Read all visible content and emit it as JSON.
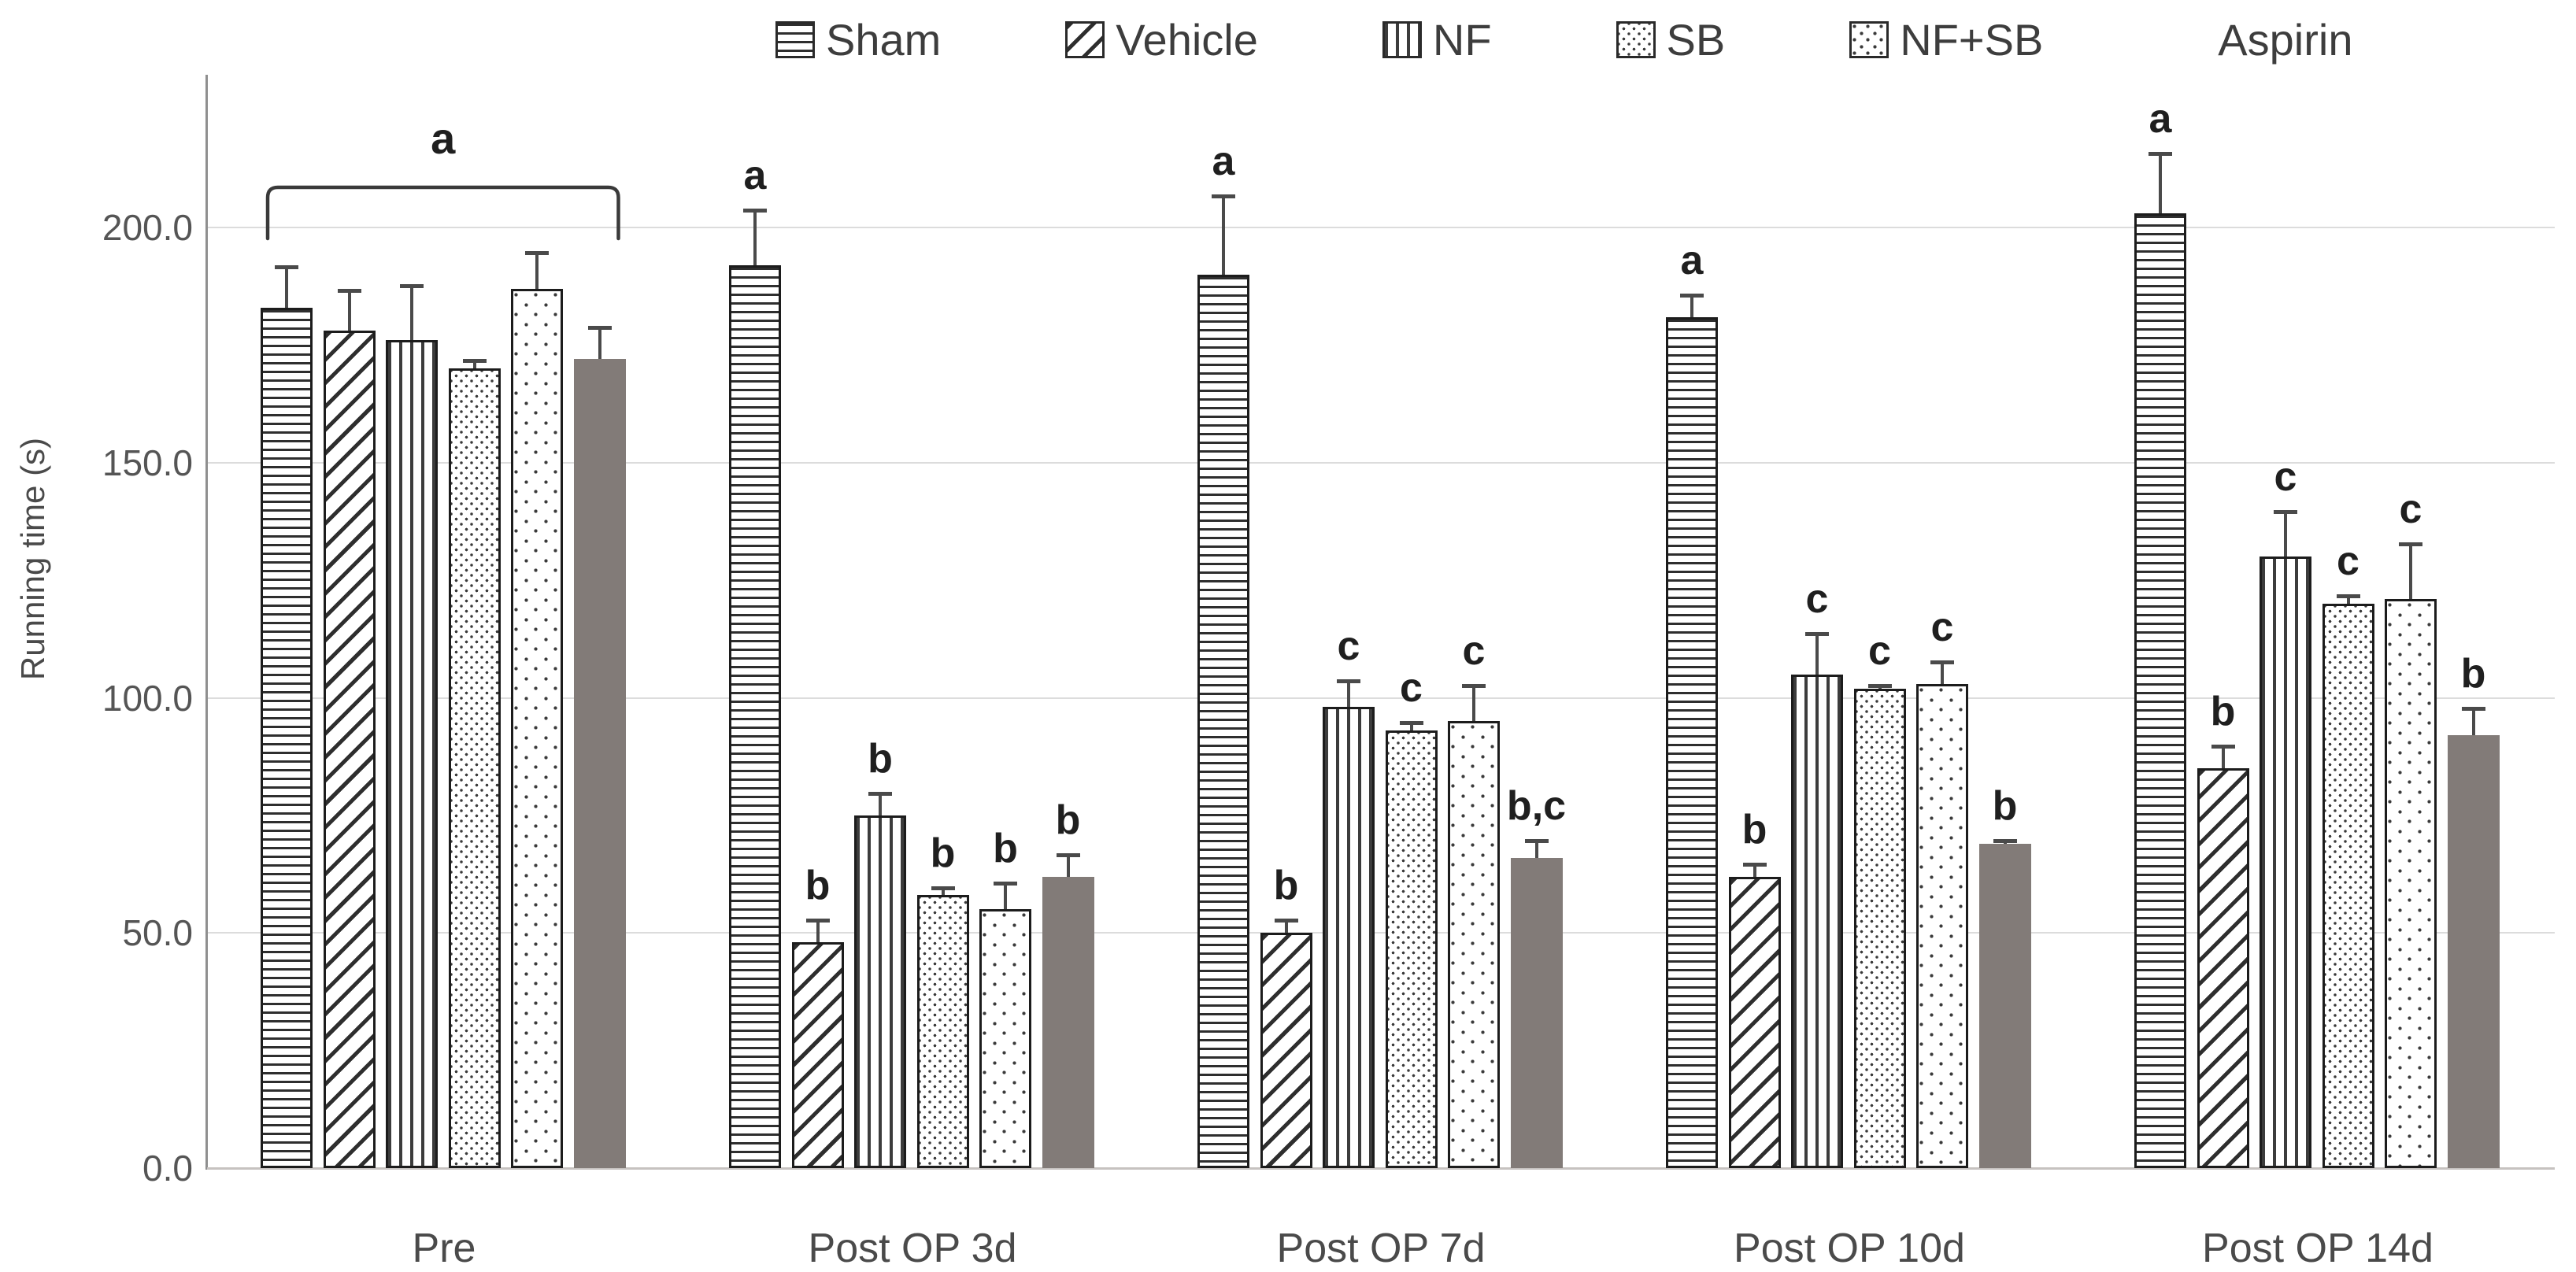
{
  "chart_data": {
    "type": "bar",
    "title": "",
    "xlabel": "",
    "ylabel": "Running time (s)",
    "ylim": [
      0,
      232
    ],
    "grid": true,
    "legend_position": "top",
    "yticks": [
      {
        "value": 0,
        "label": "0.0"
      },
      {
        "value": 50,
        "label": "50.0"
      },
      {
        "value": 100,
        "label": "100.0"
      },
      {
        "value": 150,
        "label": "150.0"
      },
      {
        "value": 200,
        "label": "200.0"
      }
    ],
    "categories": [
      "Pre",
      "Post OP 3d",
      "Post OP 7d",
      "Post OP 10d",
      "Post OP 14d"
    ],
    "series": [
      {
        "name": "Sham",
        "pattern": "horizontal-stripes",
        "values": [
          183,
          192,
          190,
          181,
          203
        ],
        "errors": [
          9,
          12,
          17,
          5,
          13
        ],
        "sig_letters": [
          "",
          "a",
          "a",
          "a",
          "a"
        ]
      },
      {
        "name": "Vehicle",
        "pattern": "diagonal-stripes",
        "values": [
          178,
          48,
          50,
          62,
          85
        ],
        "errors": [
          9,
          5,
          3,
          3,
          5
        ],
        "sig_letters": [
          "",
          "b",
          "b",
          "b",
          "b"
        ]
      },
      {
        "name": "NF",
        "pattern": "vertical-stripes",
        "values": [
          176,
          75,
          98,
          105,
          130
        ],
        "errors": [
          12,
          5,
          6,
          9,
          10
        ],
        "sig_letters": [
          "",
          "b",
          "c",
          "c",
          "c"
        ]
      },
      {
        "name": "SB",
        "pattern": "dense-dots",
        "values": [
          170,
          58,
          93,
          102,
          120
        ],
        "errors": [
          2,
          2,
          2,
          1,
          2
        ],
        "sig_letters": [
          "",
          "b",
          "c",
          "c",
          "c"
        ]
      },
      {
        "name": "NF+SB",
        "pattern": "sparse-dots",
        "values": [
          187,
          55,
          95,
          103,
          121
        ],
        "errors": [
          8,
          6,
          8,
          5,
          12
        ],
        "sig_letters": [
          "",
          "b",
          "c",
          "c",
          "c"
        ]
      },
      {
        "name": "Aspirin",
        "pattern": "solid",
        "values": [
          172,
          62,
          66,
          69,
          92
        ],
        "errors": [
          7,
          5,
          4,
          1,
          6
        ],
        "sig_letters": [
          "",
          "b",
          "b,c",
          "b",
          "b"
        ]
      }
    ],
    "annotations": {
      "pre_bracket": {
        "category": "Pre",
        "label": "a",
        "spans_all_series": true
      }
    },
    "colors": {
      "aspirin_fill": "#827b78",
      "pattern_ink": "#2e2e2e",
      "bar_border": "#1c1c1c",
      "error_bar": "#4a4a4a",
      "gridline": "#dcdcdc",
      "axis_line": "#8f8f8f",
      "baseline": "#c6c2c0",
      "tick_text": "#555555",
      "category_text": "#4a4a4a",
      "legend_text": "#3d3d3d",
      "sig_text": "#1f1f1f"
    }
  }
}
